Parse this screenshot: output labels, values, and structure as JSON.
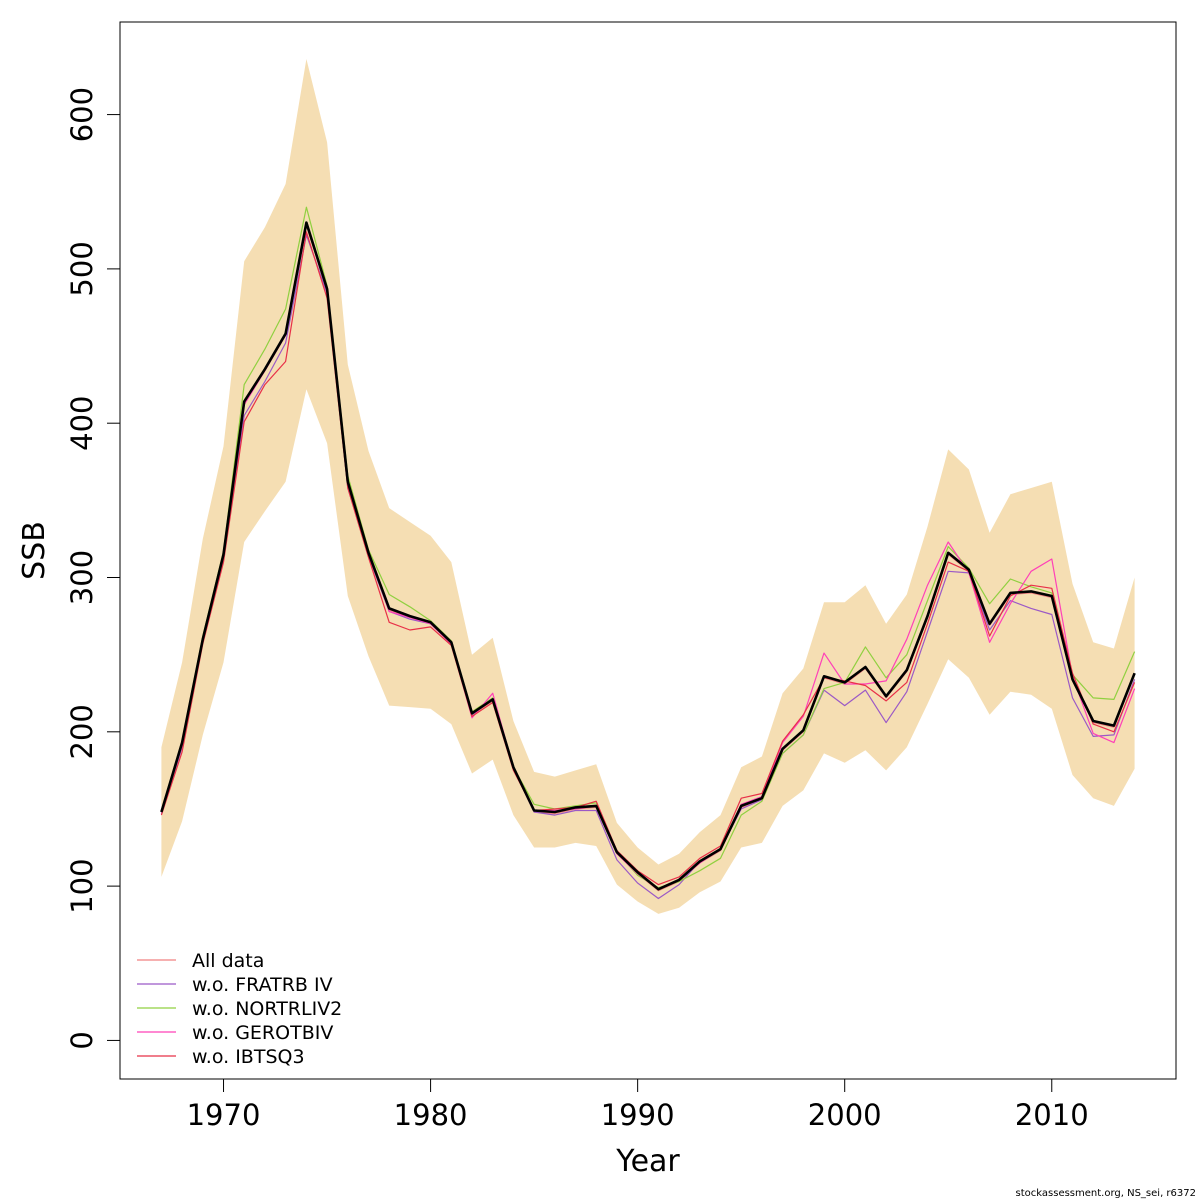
{
  "chart_data": {
    "type": "line",
    "xlabel": "Year",
    "ylabel": "SSB",
    "xlim": [
      1965,
      2016
    ],
    "ylim": [
      -25,
      660
    ],
    "x_ticks": [
      1970,
      1980,
      1990,
      2000,
      2010
    ],
    "y_ticks": [
      0,
      100,
      200,
      300,
      400,
      500,
      600
    ],
    "x_tick_labels": [
      "1970",
      "1980",
      "1990",
      "2000",
      "2010"
    ],
    "y_tick_labels": [
      "0",
      "100",
      "200",
      "300",
      "400",
      "500",
      "600"
    ],
    "grid": false,
    "legend_position": "bottom-left",
    "footnote": "stockassessment.org, NS_sei, r6372",
    "years": [
      1967,
      1968,
      1969,
      1970,
      1971,
      1972,
      1973,
      1974,
      1975,
      1976,
      1977,
      1978,
      1979,
      1980,
      1981,
      1982,
      1983,
      1984,
      1985,
      1986,
      1987,
      1988,
      1989,
      1990,
      1991,
      1992,
      1993,
      1994,
      1995,
      1996,
      1997,
      1998,
      1999,
      2000,
      2001,
      2002,
      2003,
      2004,
      2005,
      2006,
      2007,
      2008,
      2009,
      2010,
      2011,
      2012,
      2013,
      2014
    ],
    "band": {
      "color": "#f5deb3",
      "upper": [
        190,
        245,
        325,
        385,
        505,
        527,
        555,
        636,
        582,
        438,
        382,
        345,
        336,
        327,
        310,
        250,
        261,
        207,
        174,
        171,
        175,
        179,
        141,
        125,
        114,
        121,
        135,
        146,
        177,
        184,
        225,
        241,
        284,
        284,
        295,
        270,
        289,
        333,
        383,
        370,
        329,
        354,
        358,
        362,
        296,
        258,
        254,
        300
      ],
      "lower": [
        106,
        142,
        198,
        245,
        323,
        343,
        362,
        422,
        387,
        288,
        249,
        217,
        216,
        215,
        205,
        173,
        182,
        146,
        125,
        125,
        128,
        126,
        101,
        90,
        82,
        86,
        96,
        103,
        125,
        128,
        152,
        162,
        186,
        180,
        188,
        175,
        190,
        218,
        247,
        235,
        211,
        226,
        224,
        215,
        172,
        157,
        152,
        176
      ]
    },
    "main_series": {
      "name": "",
      "color": "#000000",
      "values": [
        148,
        193,
        260,
        315,
        414,
        435,
        458,
        530,
        487,
        362,
        316,
        280,
        275,
        271,
        258,
        212,
        221,
        177,
        149,
        148,
        151,
        152,
        122,
        109,
        98,
        104,
        116,
        124,
        152,
        157,
        189,
        201,
        236,
        232,
        242,
        223,
        240,
        275,
        316,
        305,
        270,
        290,
        291,
        288,
        234,
        207,
        204,
        238
      ]
    },
    "series": [
      {
        "name": "All data",
        "color": "#f08080",
        "values": [
          148,
          192,
          259,
          314,
          413,
          434,
          457,
          528,
          486,
          361,
          315,
          279,
          274,
          270,
          257,
          211,
          220,
          176,
          148,
          147,
          150,
          151,
          121,
          108,
          97,
          103,
          115,
          123,
          151,
          156,
          188,
          200,
          235,
          231,
          241,
          222,
          239,
          274,
          315,
          304,
          269,
          289,
          290,
          287,
          233,
          206,
          203,
          237
        ]
      },
      {
        "name": "w.o. FRATRB IV",
        "color": "#9b59c6",
        "values": [
          147,
          190,
          258,
          313,
          405,
          427,
          452,
          522,
          484,
          358,
          314,
          278,
          273,
          270,
          257,
          211,
          221,
          176,
          148,
          146,
          149,
          149,
          117,
          102,
          92,
          101,
          116,
          124,
          150,
          156,
          186,
          198,
          227,
          217,
          227,
          206,
          226,
          265,
          304,
          303,
          266,
          285,
          280,
          276,
          222,
          197,
          198,
          234
        ]
      },
      {
        "name": "w.o. NORTRLIV2",
        "color": "#90d040",
        "values": [
          149,
          194,
          262,
          317,
          425,
          448,
          474,
          540,
          489,
          366,
          318,
          289,
          281,
          272,
          259,
          213,
          222,
          177,
          153,
          150,
          152,
          154,
          122,
          107,
          99,
          103,
          110,
          118,
          146,
          155,
          186,
          198,
          228,
          232,
          255,
          235,
          250,
          285,
          320,
          306,
          283,
          299,
          294,
          290,
          237,
          222,
          221,
          252
        ]
      },
      {
        "name": "w.o. GEROTBIV",
        "color": "#ff40b8",
        "values": [
          148,
          193,
          260,
          314,
          412,
          434,
          457,
          529,
          487,
          362,
          316,
          278,
          274,
          270,
          257,
          209,
          225,
          177,
          149,
          149,
          150,
          152,
          121,
          108,
          98,
          104,
          115,
          124,
          153,
          158,
          193,
          210,
          251,
          231,
          231,
          233,
          260,
          295,
          323,
          303,
          258,
          283,
          304,
          312,
          236,
          199,
          193,
          228
        ]
      },
      {
        "name": "w.o. IBTSQ3",
        "color": "#e83048",
        "values": [
          146,
          187,
          257,
          310,
          401,
          425,
          440,
          524,
          481,
          358,
          313,
          271,
          266,
          268,
          256,
          210,
          219,
          175,
          149,
          150,
          151,
          155,
          123,
          110,
          101,
          106,
          118,
          126,
          157,
          160,
          194,
          211,
          235,
          233,
          230,
          220,
          232,
          270,
          310,
          304,
          262,
          288,
          295,
          293,
          238,
          205,
          200,
          232
        ]
      }
    ]
  }
}
